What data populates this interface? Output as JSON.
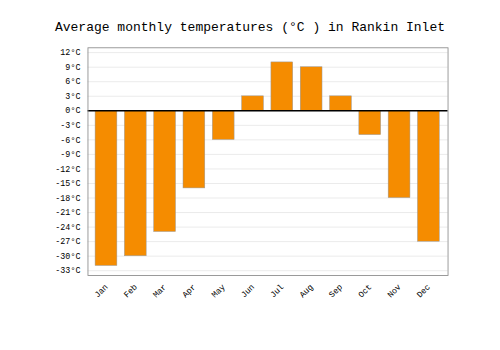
{
  "chart_data": {
    "type": "bar",
    "title": "Average monthly temperatures (°C ) in Rankin Inlet",
    "categories": [
      "Jan",
      "Feb",
      "Mar",
      "Apr",
      "May",
      "Jun",
      "Jul",
      "Aug",
      "Sep",
      "Oct",
      "Nov",
      "Dec"
    ],
    "values": [
      -32,
      -30,
      -25,
      -16,
      -6,
      3,
      10,
      9,
      3,
      -5,
      -18,
      -27
    ],
    "color": "#F58C00",
    "ylim": [
      -34,
      13
    ],
    "yticks": [
      {
        "value": -33,
        "label": "-33°C"
      },
      {
        "value": -30,
        "label": "-30°C"
      },
      {
        "value": -27,
        "label": "-27°C"
      },
      {
        "value": -24,
        "label": "-24°C"
      },
      {
        "value": -21,
        "label": "-21°C"
      },
      {
        "value": -18,
        "label": "-18°C"
      },
      {
        "value": -15,
        "label": "-15°C"
      },
      {
        "value": -12,
        "label": "-12°C"
      },
      {
        "value": -9,
        "label": "-9°C"
      },
      {
        "value": -6,
        "label": "-6°C"
      },
      {
        "value": -3,
        "label": "-3°C"
      },
      {
        "value": 0,
        "label": "0°C"
      },
      {
        "value": 3,
        "label": "3°C"
      },
      {
        "value": 6,
        "label": "6°C"
      },
      {
        "value": 9,
        "label": "9°C"
      },
      {
        "value": 12,
        "label": "12°C"
      }
    ],
    "grid": true
  }
}
